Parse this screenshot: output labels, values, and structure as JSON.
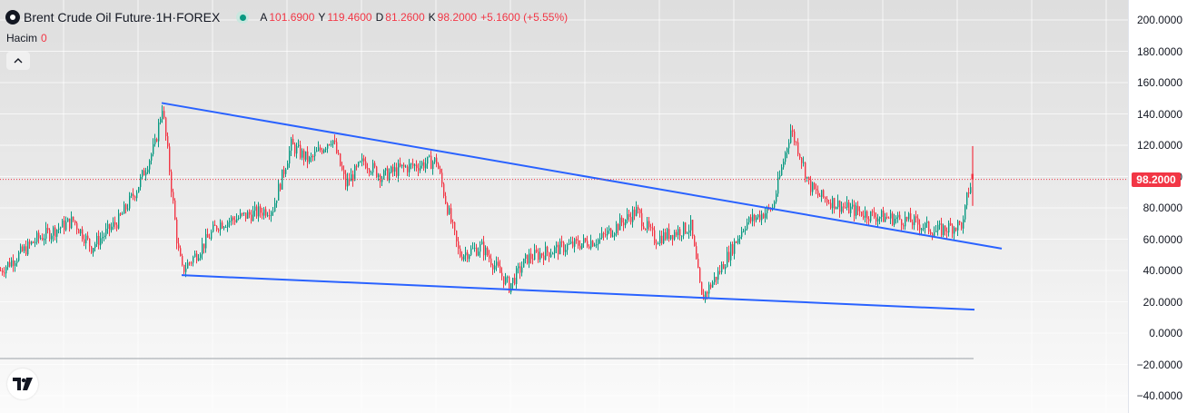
{
  "header": {
    "symbol_name": "Brent Crude Oil Future",
    "separator_1": " · ",
    "interval": "1H",
    "separator_2": " · ",
    "exchange": "FOREX",
    "open_label": "A",
    "open_value": "101.6900",
    "high_label": "Y",
    "high_value": "119.4600",
    "low_label": "D",
    "low_value": "81.2600",
    "close_label": "K",
    "close_value": "98.2000",
    "change": "+5.1600 (+5.55%)"
  },
  "volume": {
    "label": "Hacim",
    "value": "0"
  },
  "price_scale": {
    "ticks": [
      "200.0000",
      "180.0000",
      "160.0000",
      "140.0000",
      "120.0000",
      "100.0000",
      "80.0000",
      "60.0000",
      "40.0000",
      "20.0000",
      "0.0000",
      "−20.0000",
      "−40.0000"
    ],
    "current_price_label": "98.2000"
  },
  "icons": {
    "symbol_logo": "symbol-logo-icon",
    "market_status": "market-open-dot-icon",
    "collapse": "chevron-up-icon",
    "brand": "tradingview-logo-icon"
  },
  "colors": {
    "up": "#089981",
    "down": "#f23645",
    "trendline": "#2962ff",
    "price_line": "#f23645"
  },
  "chart_data": {
    "type": "candlestick",
    "title": "Brent Crude Oil Future · 1H · FOREX",
    "xlabel": "",
    "ylabel": "",
    "ylim": [
      -40,
      200
    ],
    "grid": true,
    "current_price": 98.2,
    "series": [
      {
        "name": "price path",
        "x": [
          0,
          40,
          80,
          100,
          130,
          150,
          170,
          178,
          185,
          195,
          200,
          215,
          240,
          270,
          300,
          320,
          340,
          365,
          380,
          400,
          420,
          440,
          480,
          490,
          505,
          530,
          560,
          580,
          620,
          660,
          700,
          720,
          760,
          772,
          790,
          820,
          850,
          870,
          880,
          890,
          900,
          930,
          960,
          1000,
          1030,
          1060,
          1065,
          1072
        ],
        "y": [
          40,
          60,
          72,
          55,
          72,
          92,
          120,
          145,
          110,
          55,
          40,
          50,
          70,
          75,
          80,
          120,
          110,
          125,
          95,
          110,
          100,
          105,
          110,
          85,
          50,
          55,
          30,
          48,
          55,
          60,
          78,
          60,
          68,
          22,
          38,
          70,
          80,
          130,
          115,
          95,
          88,
          80,
          75,
          72,
          65,
          70,
          90,
          100
        ]
      },
      {
        "name": "upper trendline",
        "x": [
          178,
          1103
        ],
        "y": [
          147,
          54
        ]
      },
      {
        "name": "lower trendline",
        "x": [
          200,
          1073
        ],
        "y": [
          37,
          15
        ]
      }
    ]
  }
}
